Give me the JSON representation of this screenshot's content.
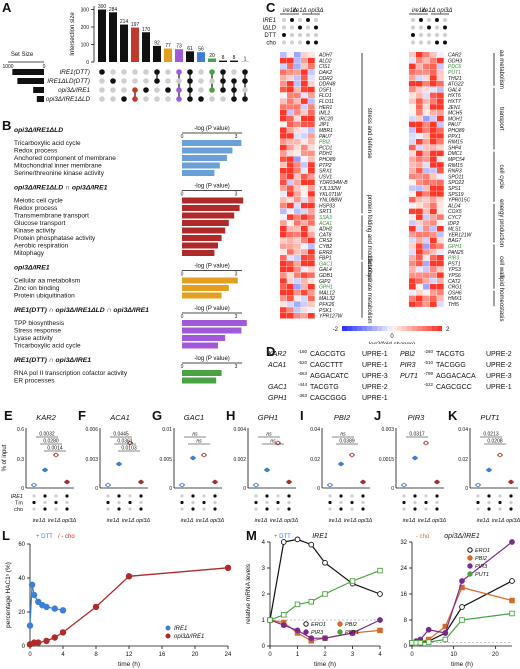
{
  "panels": {
    "A": {
      "label": "A",
      "ylabel": "Intersection size",
      "set_size_label": "Set Size",
      "set_size_ticks": [
        "1000",
        "0"
      ],
      "sets": [
        "IRE1(DTT)",
        "IRE1ΔLD(DTT)",
        "opi3Δ/IRE1",
        "opi3Δ/IRE1ΔLD"
      ],
      "set_sizes": [
        880,
        740,
        300,
        200
      ],
      "chart_data": {
        "type": "bar",
        "ylabel": "Intersection size",
        "values": [
          300,
          284,
          214,
          197,
          170,
          92,
          77,
          73,
          61,
          56,
          20,
          8,
          8,
          1
        ],
        "value_labels": [
          "300",
          "284",
          "214",
          "197",
          "170",
          "92",
          "77",
          "73",
          "61",
          "56",
          "20",
          "8",
          "8",
          "1"
        ],
        "bar_colors": [
          "#111111",
          "#111111",
          "#111111",
          "#c0392b",
          "#111111",
          "#111111",
          "#e3a020",
          "#a259d9",
          "#111111",
          "#3d7fd8",
          "#4aa343",
          "#111111",
          "#111111",
          "#111111"
        ]
      }
    },
    "B": {
      "label": "B",
      "axis_label": "-log (P value)",
      "groups": [
        {
          "title": "opi3Δ/IRE1ΔLD",
          "color": "#6a9fd8",
          "ticks": [
            "0",
            "3"
          ],
          "terms": [
            "Tricarboxylic acid cycle",
            "Redox process",
            "Anchored component of membrane",
            "Mitochondrial inner membrane",
            "Serine/threonine kinase activity"
          ],
          "values": [
            3.3,
            2.8,
            2.5,
            2.1,
            1.8
          ]
        },
        {
          "title": "opi3Δ/IRE1ΔLD ∩ opi3Δ/IRE1",
          "color": "#b02a2a",
          "ticks": [
            "0",
            "3"
          ],
          "terms": [
            "Meiotic cell cycle",
            "Redox process",
            "Transmembrane transport",
            "Glucose transport",
            "Kinase activity",
            "Protein phosphatase activity",
            "Aerobic respiration",
            "Mitophagy"
          ],
          "values": [
            3.4,
            3.2,
            2.9,
            2.6,
            2.4,
            2.2,
            2.0,
            1.8
          ]
        },
        {
          "title": "opi3Δ/IRE1",
          "color": "#e3a020",
          "ticks": [
            "0",
            "3"
          ],
          "terms": [
            "Cellular aa metabolism",
            "Zinc ion binding",
            "Protein ubiquitination"
          ],
          "values": [
            3.1,
            2.6,
            2.2
          ]
        },
        {
          "title": "IRE1(DTT) ∩ opi3Δ/IRE1ΔLD ∩ opi3Δ/IRE1",
          "color": "#a259d9",
          "ticks": [
            "0",
            "3"
          ],
          "terms": [
            "TPP biosynthesis",
            "Stress response",
            "Lyase activity",
            "Tricarboxylic acid cycle"
          ],
          "values": [
            3.6,
            3.3,
            2.4,
            2.0
          ]
        },
        {
          "title": "IRE1(DTT) ∩ opi3Δ/IRE1",
          "color": "#4aa343",
          "ticks": [
            "0",
            "3"
          ],
          "terms": [
            "RNA pol II transcription cofactor activity",
            "ER processes"
          ],
          "values": [
            2.2,
            1.9
          ]
        }
      ]
    },
    "C": {
      "label": "C",
      "col_header_1": "ire1Δ",
      "col_header_2": "ire1Δ opi3Δ",
      "row_labels": [
        "IRE1",
        "IΔLD",
        "DTT",
        "cho"
      ],
      "scale_label": "log2(fold change)",
      "scale_ticks": [
        "-2",
        "0",
        "2"
      ],
      "left_genes": [
        "ADH7",
        "ALD2",
        "CIS1",
        "DAK2",
        "DDR2",
        "DDR48",
        "DSF1",
        "FLO1",
        "FLO11",
        "HER1",
        "IML2",
        "IRC20",
        "JIP1",
        "MBR1",
        "PAU7",
        "PBI2",
        "PCD1",
        "PDH1",
        "PHO89",
        "PTP2",
        "SRX1",
        "USV1",
        "YDR034W-B",
        "YJL132W",
        "YKL071W",
        "YNL088W",
        "HSP33",
        "SRT1",
        "SSA3",
        "ACA1",
        "ADH2",
        "CAT8",
        "CRS2",
        "CYB2",
        "ERR2",
        "FBP1",
        "GAC1",
        "GAL4",
        "GDB1",
        "GIP2",
        "GPH1",
        "MAL12",
        "MAL32",
        "PFK26",
        "PSK1",
        "YPR127W"
      ],
      "right_genes": [
        "CAR2",
        "GDH3",
        "PDC6",
        "PUT1",
        "THI21",
        "ATG22",
        "GAL4",
        "HXT6",
        "HXT7",
        "JEN1",
        "MCH5",
        "MOH1",
        "PAU7",
        "PHO89",
        "PPX1",
        "RIM15",
        "SHP4",
        "DMC1",
        "MPC54",
        "RIM15",
        "RNR3",
        "SPO11",
        "SPO22",
        "SPS1",
        "SPS19",
        "YPR015C",
        "ALD4",
        "COX5",
        "CYC7",
        "IDP2",
        "MLS1",
        "YER121W",
        "BAG7",
        "GPH1",
        "PAN25",
        "PIR3",
        "PST1",
        "YPS3",
        "YPS6",
        "CAT2",
        "CRG1",
        "OSH6",
        "HMX1",
        "THI5"
      ],
      "left_categories": [
        "stress and defense",
        "protein folding and modifications",
        "carbohydrate metabolism"
      ],
      "right_categories": [
        "aa metabolism",
        "transport",
        "cell cycle",
        "energy production",
        "cell wall",
        "lipid homeostasis"
      ]
    },
    "D": {
      "label": "D",
      "rows": [
        {
          "gene": "KAR2",
          "pos": "-160",
          "seq": "CAGCGTG",
          "upre": "UPRE-1",
          "gene2": "PBI2",
          "pos2": "-260",
          "seq2": "TACGTG",
          "upre2": "UPRE-2"
        },
        {
          "gene": "ACA1",
          "pos": "-520",
          "seq": "CAGCTTT",
          "upre": "UPRE-1",
          "gene2": "PIR3",
          "pos2": "-510",
          "seq2": "TACGGG",
          "upre2": "UPRE-2"
        },
        {
          "gene": "",
          "pos": "-663",
          "seq": "AGGACATC",
          "upre": "UPRE-3",
          "gene2": "PUT1",
          "pos2": "-799",
          "seq2": "AGGACACA",
          "upre2": "UPRE-3"
        },
        {
          "gene": "GAC1",
          "pos": "-444",
          "seq": "TACGTG",
          "upre": "UPRE-2",
          "gene2": "",
          "pos2": "-522",
          "seq2": "CAGCGCC",
          "upre2": "UPRE-1"
        },
        {
          "gene": "GPH1",
          "pos": "-363",
          "seq": "CAGCGGG",
          "upre": "UPRE-1",
          "gene2": "",
          "pos2": "",
          "seq2": "",
          "upre2": ""
        }
      ]
    },
    "ChIP": {
      "ylabel": "% of input",
      "row_labels": [
        "IRE1",
        "Tm",
        "cho"
      ],
      "x_labels": [
        "ire1Δ",
        "ire1Δ opi3Δ"
      ],
      "plots": [
        {
          "label": "E",
          "gene": "KAR2",
          "ymax": "0.6",
          "ymid": "0.3",
          "p": [
            "0.0032",
            "0.0280",
            "0.0014"
          ]
        },
        {
          "label": "F",
          "gene": "ACA1",
          "ymax": "0.006",
          "ymid": "0.003",
          "p": [
            "0.0445",
            "0.0361",
            "0.0103"
          ]
        },
        {
          "label": "G",
          "gene": "GAC1",
          "ymax": "0.01",
          "ymid": "0.005",
          "p": [
            "ns",
            "ns"
          ]
        },
        {
          "label": "H",
          "gene": "GPH1",
          "ymax": "0.004",
          "ymid": "0.002",
          "p": [
            "ns",
            "ns"
          ]
        },
        {
          "label": "I",
          "gene": "PBI2",
          "ymax": "0.04",
          "ymid": "0.02",
          "p": [
            "ns",
            "0.0389"
          ]
        },
        {
          "label": "J",
          "gene": "PIR3",
          "ymax": "0.003",
          "ymid": "0.0015",
          "p": [
            "0.0317"
          ]
        },
        {
          "label": "K",
          "gene": "PUT1",
          "ymax": "0.04",
          "ymid": "0.02",
          "p": [
            "0.0213",
            "0.0208"
          ]
        }
      ]
    },
    "L": {
      "label": "L",
      "legend_top_dtt": "+ DTT",
      "legend_top_cho": "/ - cho",
      "ylabel": "percentage HAC1ˢ (%)",
      "xlabel": "time (h)",
      "series_labels": [
        "IRE1",
        "opi3Δ/IRE1"
      ],
      "chart_data": {
        "type": "line",
        "xlabel": "time (h)",
        "ylabel": "percentage HAC1ˢ (%)",
        "xlim": [
          0,
          24
        ],
        "ylim": [
          0,
          60
        ],
        "xticks": [
          "0",
          "4",
          "8",
          "12",
          "16",
          "20",
          "24"
        ],
        "yticks": [
          "0",
          "20",
          "40",
          "60"
        ],
        "series": [
          {
            "name": "IRE1",
            "color": "#3d7fd8",
            "x": [
              0,
              0.25,
              0.5,
              1,
              1.5,
              2,
              3,
              4
            ],
            "y": [
              12,
              36,
              30,
              26,
              24,
              23,
              22,
              21
            ]
          },
          {
            "name": "opi3Δ/IRE1",
            "color": "#b02a2a",
            "x": [
              0,
              0.5,
              1,
              2,
              3,
              4,
              8,
              12,
              24
            ],
            "y": [
              1,
              2,
              2,
              3,
              5,
              8,
              23,
              41,
              46
            ]
          }
        ]
      }
    },
    "M": {
      "label": "M",
      "left_title": "IRE1",
      "right_title": "opi3Δ/IRE1",
      "left_tag": "+ DTT",
      "right_tag": "- cho",
      "ylabel": "relative mRNA levels",
      "xlabel": "time (h)",
      "legend": [
        "ERO1",
        "PBI2",
        "PIR3",
        "PUT1"
      ],
      "chart_data": [
        {
          "type": "line",
          "xlim": [
            0,
            4
          ],
          "ylim": [
            0,
            4
          ],
          "xticks": [
            "0",
            "1",
            "2",
            "3",
            "4"
          ],
          "yticks": [
            "0",
            "1",
            "2",
            "3",
            "4"
          ],
          "x": [
            0,
            0.5,
            1,
            1.5,
            2,
            3,
            4
          ],
          "series": [
            {
              "name": "ERO1",
              "color": "#111111",
              "y": [
                1,
                4,
                4.1,
                3.9,
                3.2,
                2.4,
                2.0
              ]
            },
            {
              "name": "PBI2",
              "color": "#d46a2a",
              "y": [
                1,
                0.9,
                0.5,
                0.2,
                0.3,
                0.5,
                0.6
              ]
            },
            {
              "name": "PIR3",
              "color": "#7a2a8a",
              "y": [
                1,
                0.8,
                0.6,
                0.3,
                0.3,
                0.5,
                1.0
              ]
            },
            {
              "name": "PUT1",
              "color": "#4aa343",
              "y": [
                1,
                1.2,
                1.6,
                1.7,
                2.0,
                2.5,
                2.9
              ]
            }
          ]
        },
        {
          "type": "line",
          "xlim": [
            0,
            24
          ],
          "ylim": [
            0,
            32
          ],
          "xticks": [
            "0",
            "10",
            "20"
          ],
          "yticks": [
            "0",
            "8",
            "16",
            "24",
            "32"
          ],
          "x": [
            0,
            1,
            2,
            4,
            8,
            12,
            24
          ],
          "series": [
            {
              "name": "ERO1",
              "color": "#111111",
              "y": [
                1,
                1,
                1,
                1.5,
                4,
                12,
                20
              ]
            },
            {
              "name": "PBI2",
              "color": "#d46a2a",
              "y": [
                1,
                0.8,
                1.2,
                2,
                6,
                18,
                14
              ]
            },
            {
              "name": "PIR3",
              "color": "#7a2a8a",
              "y": [
                1,
                1.5,
                2,
                5,
                4,
                20,
                32
              ]
            },
            {
              "name": "PUT1",
              "color": "#4aa343",
              "y": [
                1,
                1,
                1,
                1.2,
                2,
                8,
                10
              ]
            }
          ]
        }
      ]
    }
  }
}
